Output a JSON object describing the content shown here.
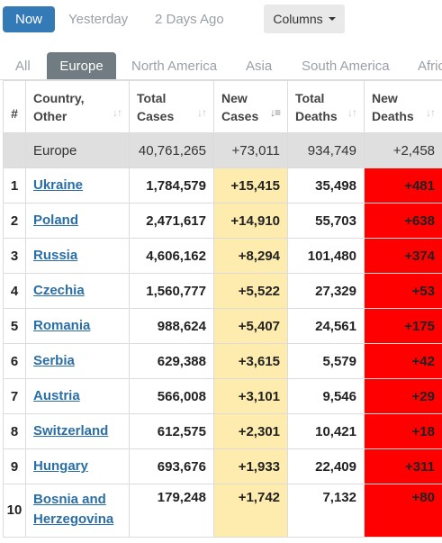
{
  "topbar": {
    "now_label": "Now",
    "yesterday_label": "Yesterday",
    "two_days_label": "2 Days Ago",
    "columns_label": "Columns"
  },
  "tabs": [
    "All",
    "Europe",
    "North America",
    "Asia",
    "South America",
    "Afric"
  ],
  "active_tab": "Europe",
  "colors": {
    "primary": "#337ab7",
    "tab_active": "#707b82",
    "new_cases_bg": "#fdecad",
    "new_deaths_bg": "#ff0000",
    "link": "#2a6ea6"
  },
  "table": {
    "headers": {
      "index": "#",
      "country": "Country, Other",
      "total_cases": "Total Cases",
      "new_cases": "New Cases",
      "total_deaths": "Total Deaths",
      "new_deaths": "New Deaths"
    },
    "total_row": {
      "country": "Europe",
      "total_cases": "40,761,265",
      "new_cases": "+73,011",
      "total_deaths": "934,749",
      "new_deaths": "+2,458"
    },
    "rows": [
      {
        "index": "1",
        "country": "Ukraine",
        "total_cases": "1,784,579",
        "new_cases": "+15,415",
        "total_deaths": "35,498",
        "new_deaths": "+481"
      },
      {
        "index": "2",
        "country": "Poland",
        "total_cases": "2,471,617",
        "new_cases": "+14,910",
        "total_deaths": "55,703",
        "new_deaths": "+638"
      },
      {
        "index": "3",
        "country": "Russia",
        "total_cases": "4,606,162",
        "new_cases": "+8,294",
        "total_deaths": "101,480",
        "new_deaths": "+374"
      },
      {
        "index": "4",
        "country": "Czechia",
        "total_cases": "1,560,777",
        "new_cases": "+5,522",
        "total_deaths": "27,329",
        "new_deaths": "+53"
      },
      {
        "index": "5",
        "country": "Romania",
        "total_cases": "988,624",
        "new_cases": "+5,407",
        "total_deaths": "24,561",
        "new_deaths": "+175"
      },
      {
        "index": "6",
        "country": "Serbia",
        "total_cases": "629,388",
        "new_cases": "+3,615",
        "total_deaths": "5,579",
        "new_deaths": "+42"
      },
      {
        "index": "7",
        "country": "Austria",
        "total_cases": "566,008",
        "new_cases": "+3,101",
        "total_deaths": "9,546",
        "new_deaths": "+29"
      },
      {
        "index": "8",
        "country": "Switzerland",
        "total_cases": "612,575",
        "new_cases": "+2,301",
        "total_deaths": "10,421",
        "new_deaths": "+18"
      },
      {
        "index": "9",
        "country": "Hungary",
        "total_cases": "693,676",
        "new_cases": "+1,933",
        "total_deaths": "22,409",
        "new_deaths": "+311"
      },
      {
        "index": "10",
        "country": "Bosnia and Herzegovina",
        "total_cases": "179,248",
        "new_cases": "+1,742",
        "total_deaths": "7,132",
        "new_deaths": "+80"
      }
    ]
  }
}
